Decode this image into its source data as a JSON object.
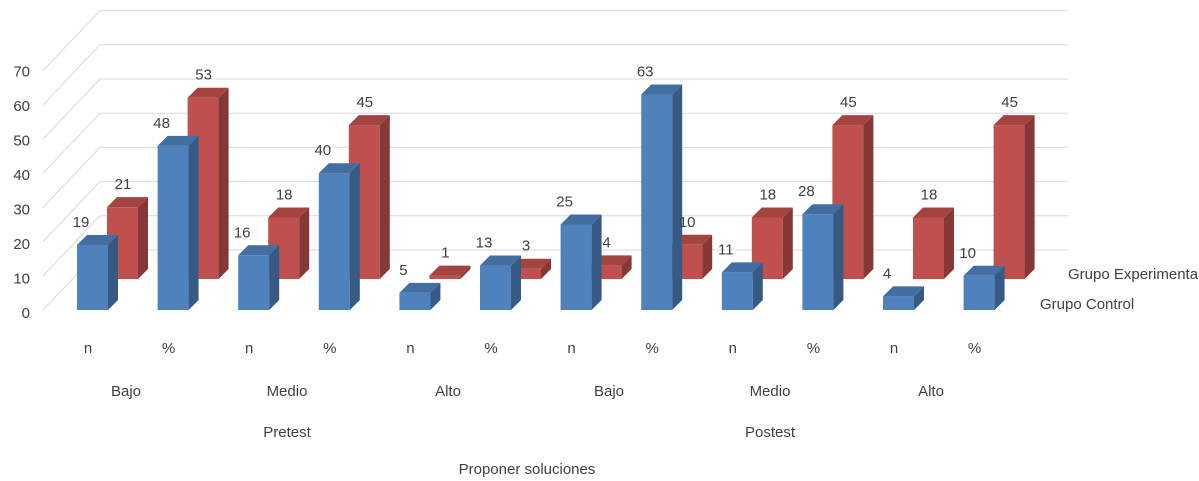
{
  "chart_data": {
    "type": "bar",
    "three_d": true,
    "title": "Proponer soluciones",
    "category_levels": {
      "measure": [
        "n",
        "%",
        "n",
        "%",
        "n",
        "%",
        "n",
        "%",
        "n",
        "%",
        "n",
        "%"
      ],
      "level": [
        "Bajo",
        "Medio",
        "Alto",
        "Bajo",
        "Medio",
        "Alto"
      ],
      "phase": [
        "Pretest",
        "Postest"
      ]
    },
    "series": [
      {
        "name": "Grupo Control",
        "color": "#4f81bd",
        "values": [
          19,
          48,
          16,
          40,
          5,
          13,
          25,
          63,
          11,
          28,
          4,
          10
        ]
      },
      {
        "name": "Grupo Experimental",
        "color": "#c0504d",
        "values": [
          21,
          53,
          18,
          45,
          1,
          3,
          4,
          10,
          18,
          45,
          18,
          45
        ]
      }
    ],
    "y_ticks": [
      "0",
      "10",
      "20",
      "30",
      "40",
      "50",
      "60",
      "70"
    ],
    "ylim": [
      0,
      70
    ],
    "grid": true,
    "legend": "right"
  }
}
